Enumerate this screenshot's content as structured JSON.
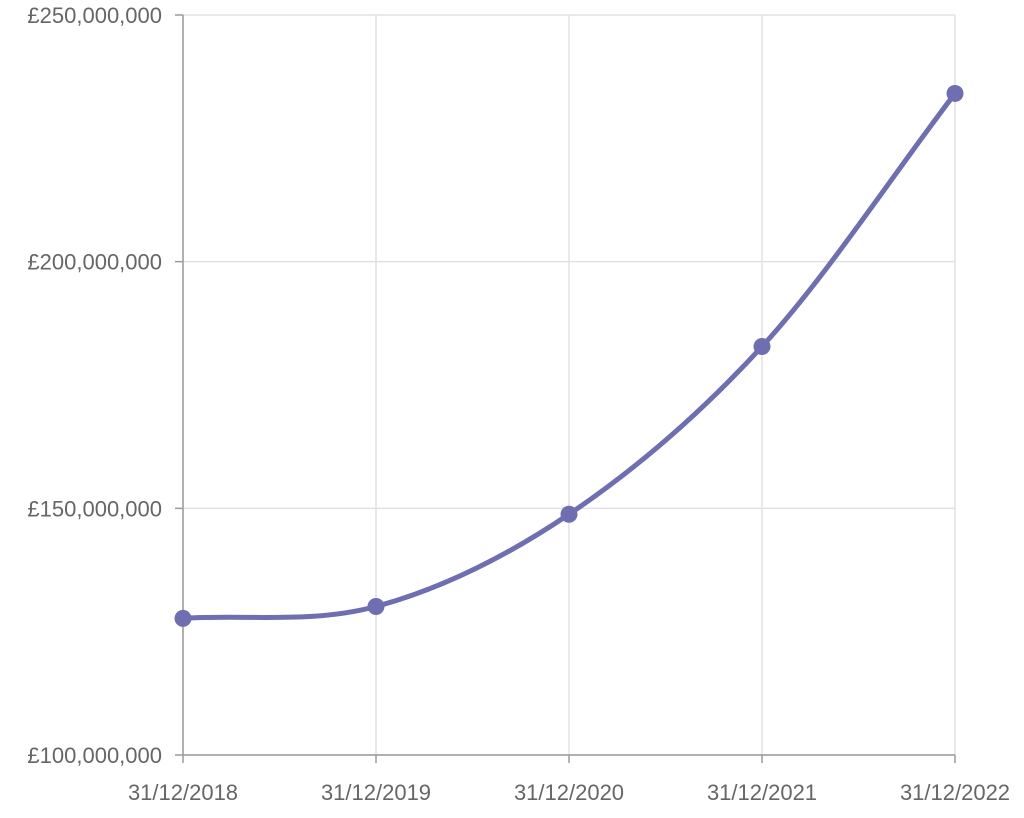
{
  "chart_data": {
    "type": "line",
    "title": "",
    "xlabel": "",
    "ylabel": "",
    "x": [
      "31/12/2018",
      "31/12/2019",
      "31/12/2020",
      "31/12/2021",
      "31/12/2022"
    ],
    "series": [
      {
        "values": [
          127700000,
          130100000,
          148800000,
          182800000,
          234100000
        ],
        "color": "#6e6eb0"
      }
    ],
    "ylim": [
      100000000,
      250000000
    ],
    "yticks": [
      100000000,
      150000000,
      200000000,
      250000000
    ],
    "ytick_labels": [
      "£100,000,000",
      "£150,000,000",
      "£200,000,000",
      "£250,000,000"
    ],
    "grid": true,
    "legend": "none",
    "colors": {
      "line": "#6e6eb0",
      "grid": "#e2e2e2",
      "axis": "#9a9a9a",
      "tick_text": "#666666"
    }
  }
}
